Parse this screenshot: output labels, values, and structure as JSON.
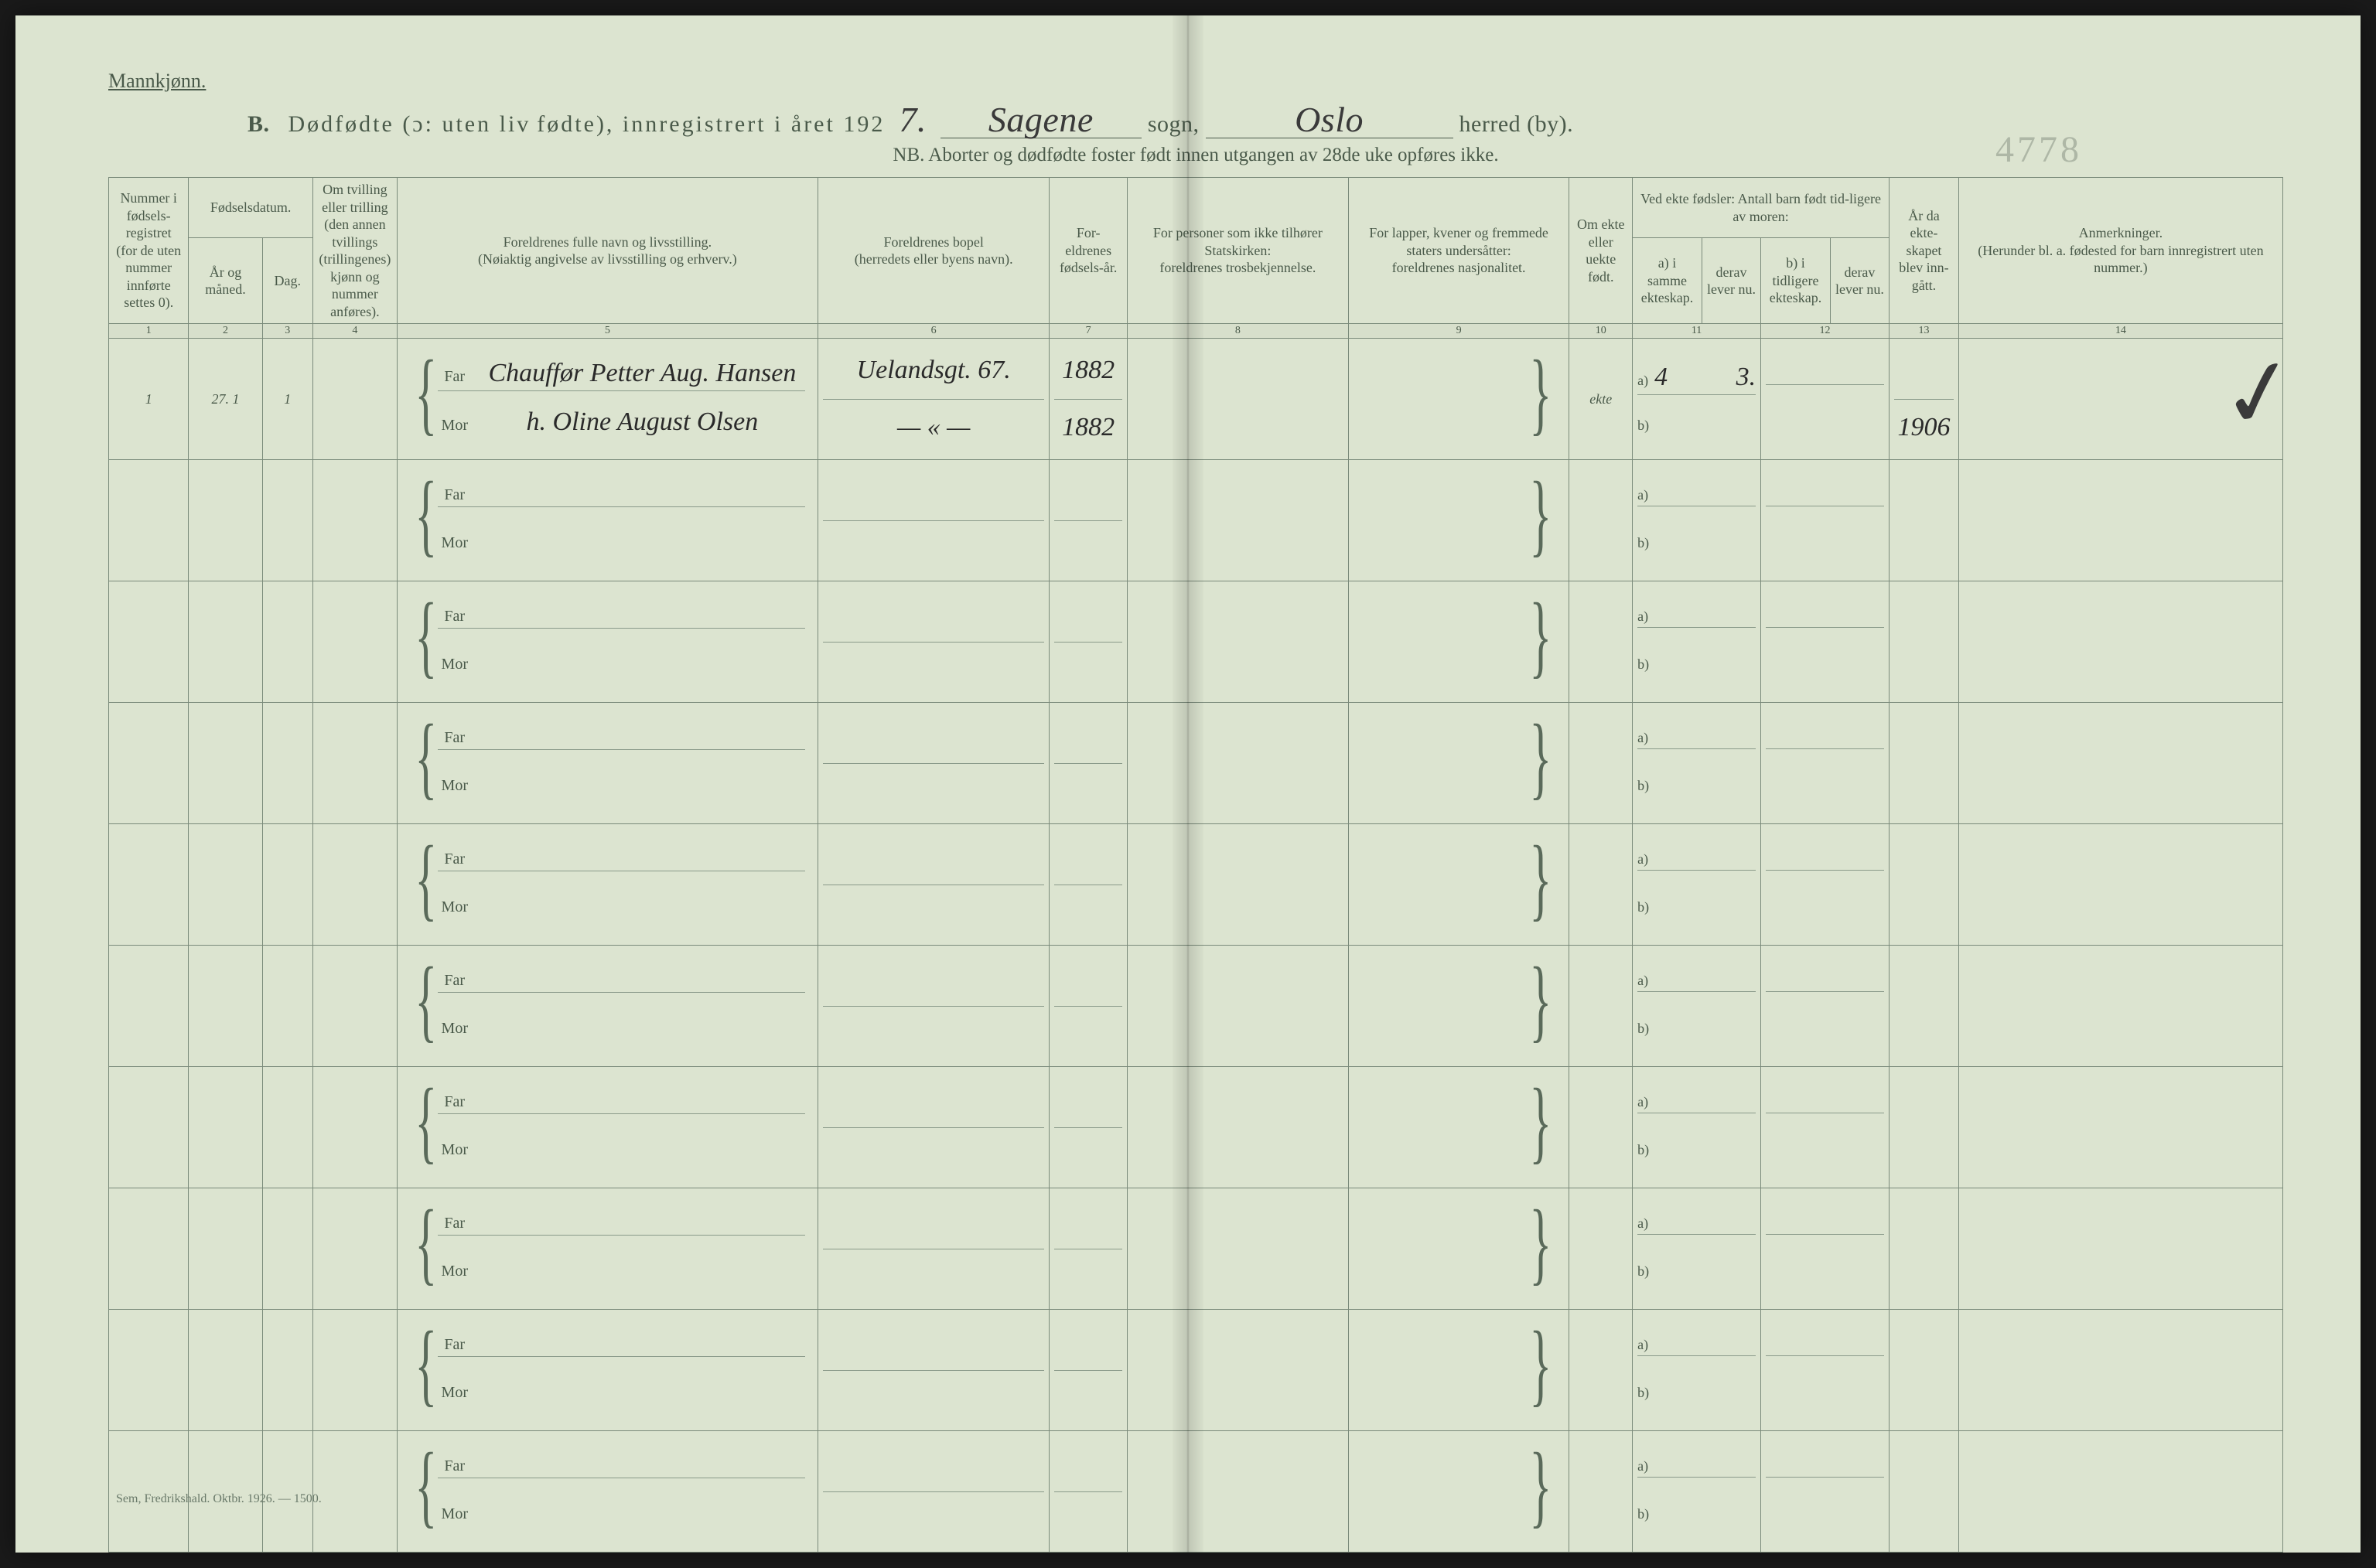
{
  "gender_label": "Mannkjønn.",
  "header": {
    "section_letter": "B.",
    "title_part1": "Dødfødte (ɔ: uten liv",
    "title_part2": "fødte), innregistrert i året 192",
    "year_suffix_hand": "7.",
    "parish_hand": "Sagene",
    "parish_label": "sogn,",
    "district_hand": "Oslo",
    "district_label": "herred (by).",
    "nb_text": "NB.  Aborter og dødfødte foster født innen utgangen av 28de uke opføres ikke.",
    "pencil_number": "4778"
  },
  "columns": {
    "c1": "Nummer i fødsels-registret (for de uten nummer innførte settes 0).",
    "c2_top": "Fødselsdatum.",
    "c2a": "År og måned.",
    "c2b": "Dag.",
    "c4": "Om tvilling eller trilling (den annen tvillings (trillingenes) kjønn og nummer anføres).",
    "c5_top": "Foreldrenes fulle navn og livsstilling.",
    "c5_sub": "(Nøiaktig angivelse av livsstilling og erhverv.)",
    "c6_top": "Foreldrenes bopel",
    "c6_sub": "(herredets eller byens navn).",
    "c7": "For-eldrenes fødsels-år.",
    "c8_top": "For personer som ikke tilhører Statskirken:",
    "c8_sub": "foreldrenes trosbekjennelse.",
    "c9_top": "For lapper, kvener og fremmede staters undersåtter:",
    "c9_sub": "foreldrenes nasjonalitet.",
    "c10": "Om ekte eller uekte født.",
    "c11_top": "Ved ekte fødsler: Antall barn født tid-ligere av moren:",
    "c11a": "a) i samme ekteskap.",
    "c11b": "b) i tidligere ekteskap.",
    "c12a": "derav lever nu.",
    "c12b": "derav lever nu.",
    "c13": "År da ekte-skapet blev inn-gått.",
    "c14_top": "Anmerkninger.",
    "c14_sub": "(Herunder bl. a. fødested for barn innregistrert uten nummer.)"
  },
  "colnums": [
    "1",
    "2",
    "3",
    "4",
    "5",
    "6",
    "7",
    "8",
    "9",
    "10",
    "11",
    "12",
    "13",
    "14"
  ],
  "row1": {
    "num": "1",
    "dato": "27. 1",
    "dag": "1",
    "far_name": "Chauffør Petter Aug. Hansen",
    "mor_name": "h. Oline August Olsen",
    "bopel_far": "Uelandsgt. 67.",
    "bopel_mor": "— « —",
    "far_year": "1882",
    "mor_year": "1882",
    "ekte": "ekte",
    "a_val": "4",
    "a_derav": "3.",
    "year_married": "1906"
  },
  "labels": {
    "far": "Far",
    "mor": "Mor",
    "a": "a)",
    "b": "b)"
  },
  "footer": "Sem, Fredrikshald.  Oktbr. 1926. — 1500.",
  "colors": {
    "paper": "#dce4d0",
    "ink": "#4a5a4a",
    "rule": "#7a8a7a",
    "handwriting": "#2a2a2a"
  },
  "col_widths_pct": [
    3.8,
    3.5,
    2.4,
    4.0,
    20.0,
    11.0,
    3.7,
    10.5,
    10.5,
    3.0,
    3.3,
    2.8,
    2.8,
    3.3,
    15.4
  ]
}
